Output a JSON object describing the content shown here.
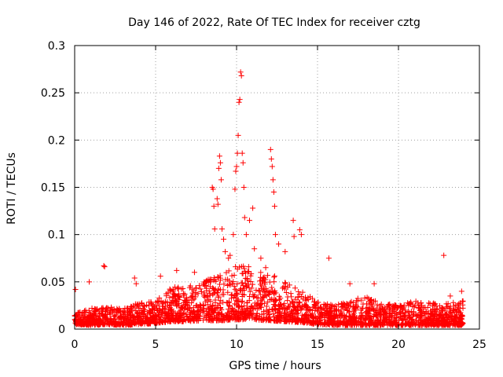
{
  "chart_data": {
    "type": "scatter",
    "title": "Day 146 of 2022, Rate Of TEC Index for receiver cztg",
    "xlabel": "GPS time / hours",
    "ylabel": "ROTI / TECUs",
    "xlim": [
      0,
      25
    ],
    "ylim": [
      0,
      0.3
    ],
    "xticks": [
      0,
      5,
      10,
      15,
      20,
      25
    ],
    "xtick_labels": [
      "0",
      "5",
      "10",
      "15",
      "20",
      "25"
    ],
    "yticks": [
      0,
      0.05,
      0.1,
      0.15,
      0.2,
      0.25,
      0.3
    ],
    "ytick_labels": [
      "0",
      "0.05",
      "0.1",
      "0.15",
      "0.2",
      "0.25",
      "0.3"
    ],
    "grid": true,
    "marker": "+",
    "color": "#ff0000",
    "series": [
      {
        "name": "ROTI",
        "points": [
          [
            0.05,
            0.042
          ],
          [
            0.9,
            0.05
          ],
          [
            1.8,
            0.067
          ],
          [
            1.85,
            0.066
          ],
          [
            3.7,
            0.054
          ],
          [
            3.8,
            0.048
          ],
          [
            5.3,
            0.056
          ],
          [
            6.3,
            0.062
          ],
          [
            7.4,
            0.06
          ],
          [
            8.4,
            0.05
          ],
          [
            8.5,
            0.15
          ],
          [
            8.55,
            0.148
          ],
          [
            8.6,
            0.13
          ],
          [
            8.65,
            0.106
          ],
          [
            8.8,
            0.138
          ],
          [
            8.85,
            0.132
          ],
          [
            8.9,
            0.17
          ],
          [
            8.95,
            0.183
          ],
          [
            9.0,
            0.176
          ],
          [
            9.05,
            0.158
          ],
          [
            9.1,
            0.106
          ],
          [
            9.2,
            0.095
          ],
          [
            9.3,
            0.082
          ],
          [
            9.5,
            0.075
          ],
          [
            9.6,
            0.078
          ],
          [
            9.8,
            0.1
          ],
          [
            9.9,
            0.148
          ],
          [
            9.95,
            0.167
          ],
          [
            10.0,
            0.172
          ],
          [
            10.05,
            0.186
          ],
          [
            10.1,
            0.205
          ],
          [
            10.15,
            0.24
          ],
          [
            10.2,
            0.243
          ],
          [
            10.25,
            0.272
          ],
          [
            10.3,
            0.268
          ],
          [
            10.35,
            0.186
          ],
          [
            10.4,
            0.176
          ],
          [
            10.45,
            0.15
          ],
          [
            10.5,
            0.118
          ],
          [
            10.6,
            0.1
          ],
          [
            10.8,
            0.115
          ],
          [
            11.0,
            0.128
          ],
          [
            11.1,
            0.085
          ],
          [
            11.5,
            0.075
          ],
          [
            11.8,
            0.065
          ],
          [
            12.1,
            0.19
          ],
          [
            12.15,
            0.18
          ],
          [
            12.2,
            0.172
          ],
          [
            12.25,
            0.158
          ],
          [
            12.3,
            0.145
          ],
          [
            12.35,
            0.13
          ],
          [
            12.4,
            0.1
          ],
          [
            12.6,
            0.09
          ],
          [
            13.0,
            0.082
          ],
          [
            13.5,
            0.115
          ],
          [
            13.55,
            0.098
          ],
          [
            13.9,
            0.105
          ],
          [
            14.0,
            0.1
          ],
          [
            15.7,
            0.075
          ],
          [
            17.0,
            0.048
          ],
          [
            18.5,
            0.048
          ],
          [
            22.8,
            0.078
          ],
          [
            23.2,
            0.035
          ],
          [
            23.9,
            0.04
          ]
        ]
      }
    ],
    "baseline_envelope": {
      "description": "Dense band of low ROTI points covering most of the day",
      "x": [
        0,
        1,
        2,
        3,
        4,
        5,
        6,
        7,
        8,
        9,
        10,
        11,
        12,
        13,
        14,
        15,
        16,
        17,
        18,
        19,
        20,
        21,
        22,
        23,
        24
      ],
      "low": [
        0.005,
        0.004,
        0.005,
        0.004,
        0.005,
        0.006,
        0.008,
        0.008,
        0.009,
        0.009,
        0.01,
        0.01,
        0.009,
        0.008,
        0.007,
        0.005,
        0.004,
        0.004,
        0.004,
        0.004,
        0.004,
        0.004,
        0.004,
        0.004,
        0.004
      ],
      "high": [
        0.018,
        0.022,
        0.024,
        0.022,
        0.028,
        0.03,
        0.045,
        0.045,
        0.05,
        0.06,
        0.07,
        0.065,
        0.06,
        0.05,
        0.04,
        0.03,
        0.025,
        0.03,
        0.035,
        0.028,
        0.025,
        0.03,
        0.028,
        0.028,
        0.03
      ]
    }
  }
}
